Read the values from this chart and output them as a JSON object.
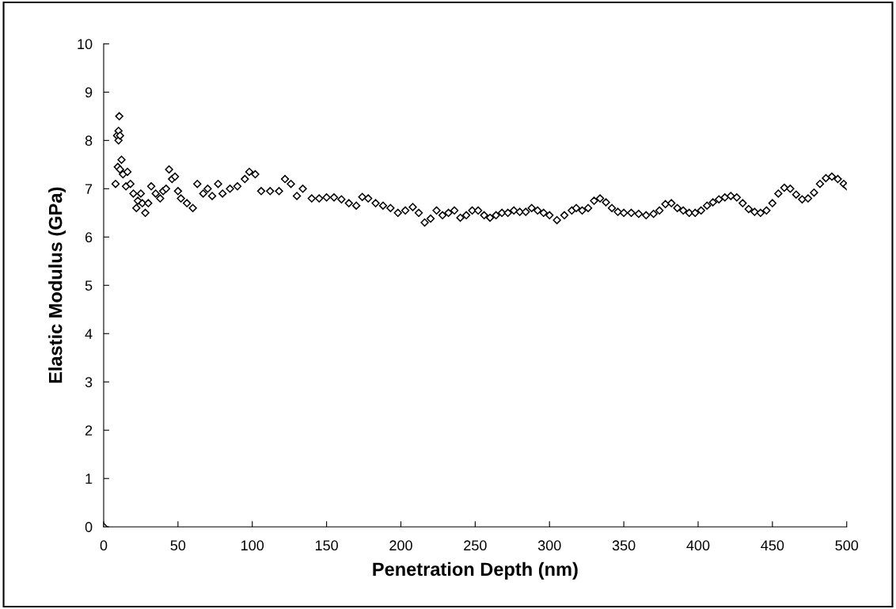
{
  "chart_data": {
    "type": "scatter",
    "xlabel": "Penetration Depth (nm)",
    "ylabel": "Elastic Modulus (GPa)",
    "xlim": [
      0,
      500
    ],
    "ylim": [
      0,
      10
    ],
    "xticks": [
      0,
      50,
      100,
      150,
      200,
      250,
      300,
      350,
      400,
      450,
      500
    ],
    "yticks": [
      0,
      1,
      2,
      3,
      4,
      5,
      6,
      7,
      8,
      9,
      10
    ],
    "grid": false,
    "legend": false,
    "marker": "diamond",
    "series": [
      {
        "color": "#000000",
        "x": [
          0,
          8,
          9,
          9.5,
          10,
          10,
          10.5,
          11,
          11,
          12,
          13,
          15,
          16,
          18,
          20,
          22,
          23,
          25,
          26,
          28,
          30,
          32,
          35,
          38,
          40,
          42,
          44,
          46,
          48,
          50,
          52,
          56,
          60,
          63,
          67,
          70,
          73,
          77,
          80,
          85,
          90,
          95,
          98,
          102,
          106,
          112,
          118,
          122,
          126,
          130,
          134,
          140,
          145,
          150,
          155,
          160,
          165,
          170,
          174,
          178,
          183,
          188,
          193,
          198,
          203,
          208,
          212,
          216,
          220,
          224,
          228,
          232,
          236,
          240,
          244,
          248,
          252,
          256,
          260,
          264,
          268,
          272,
          276,
          280,
          284,
          288,
          292,
          296,
          300,
          305,
          310,
          315,
          318,
          322,
          326,
          330,
          334,
          338,
          342,
          346,
          350,
          355,
          360,
          365,
          370,
          374,
          378,
          382,
          386,
          390,
          394,
          398,
          402,
          406,
          410,
          414,
          418,
          422,
          426,
          430,
          434,
          438,
          442,
          446,
          450,
          454,
          458,
          462,
          466,
          470,
          474,
          478,
          482,
          486,
          490,
          494,
          498,
          500
        ],
        "values": [
          0,
          7.1,
          8.1,
          7.45,
          8.2,
          8.0,
          8.5,
          7.4,
          8.1,
          7.6,
          7.3,
          7.05,
          7.35,
          7.1,
          6.9,
          6.6,
          6.75,
          6.9,
          6.7,
          6.5,
          6.7,
          7.05,
          6.9,
          6.8,
          6.95,
          7.0,
          7.4,
          7.2,
          7.25,
          6.95,
          6.8,
          6.7,
          6.6,
          7.1,
          6.9,
          7.0,
          6.85,
          7.1,
          6.9,
          7.0,
          7.05,
          7.2,
          7.35,
          7.3,
          6.95,
          6.95,
          6.95,
          7.2,
          7.1,
          6.85,
          7.0,
          6.8,
          6.8,
          6.82,
          6.82,
          6.78,
          6.7,
          6.65,
          6.83,
          6.8,
          6.7,
          6.65,
          6.6,
          6.5,
          6.55,
          6.62,
          6.5,
          6.3,
          6.38,
          6.55,
          6.45,
          6.5,
          6.55,
          6.4,
          6.45,
          6.55,
          6.55,
          6.45,
          6.4,
          6.45,
          6.5,
          6.5,
          6.55,
          6.52,
          6.52,
          6.6,
          6.55,
          6.5,
          6.45,
          6.35,
          6.45,
          6.55,
          6.6,
          6.55,
          6.6,
          6.75,
          6.8,
          6.72,
          6.6,
          6.52,
          6.5,
          6.5,
          6.48,
          6.45,
          6.48,
          6.55,
          6.68,
          6.7,
          6.6,
          6.55,
          6.5,
          6.5,
          6.55,
          6.65,
          6.72,
          6.78,
          6.82,
          6.85,
          6.82,
          6.7,
          6.58,
          6.52,
          6.5,
          6.55,
          6.7,
          6.9,
          7.02,
          7.0,
          6.88,
          6.78,
          6.8,
          6.92,
          7.1,
          7.22,
          7.25,
          7.2,
          7.1,
          7.05
        ]
      }
    ]
  }
}
